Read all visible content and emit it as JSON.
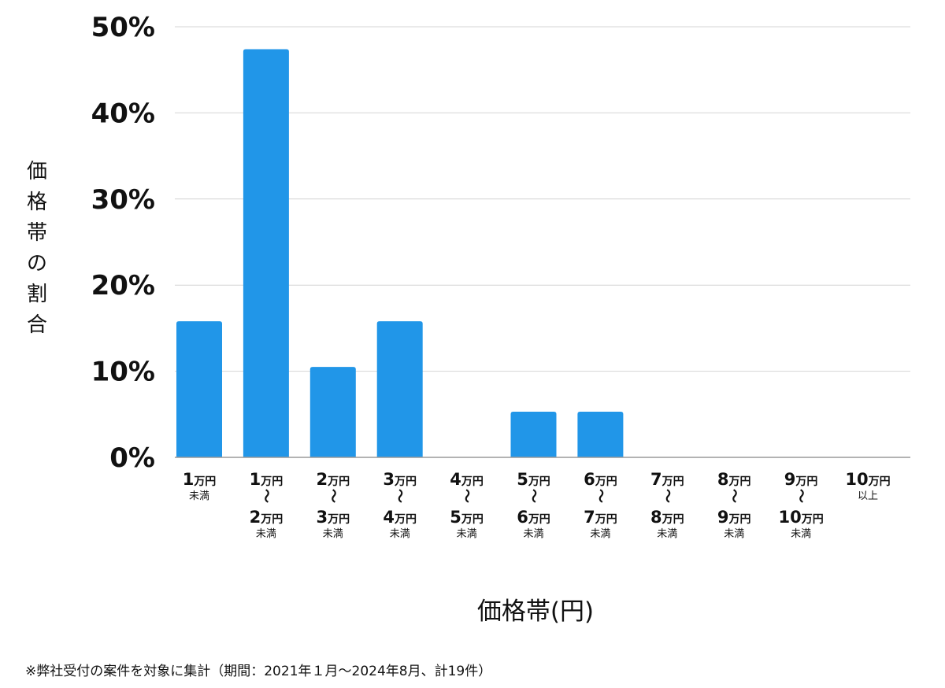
{
  "chart_data": {
    "type": "bar",
    "xlabel": "価格帯(円)",
    "ylabel": "価格帯の割合",
    "ylim": [
      0,
      50
    ],
    "yticks": [
      "0%",
      "10%",
      "20%",
      "30%",
      "40%",
      "50%"
    ],
    "grid": true,
    "categories": [
      "1万円未満",
      "1万円〜2万円未満",
      "2万円〜3万円未満",
      "3万円〜4万円未満",
      "4万円〜5万円未満",
      "5万円〜6万円未満",
      "6万円〜7万円未満",
      "7万円〜8万円未満",
      "8万円〜9万円未満",
      "9万円〜10万円未満",
      "10万円以上"
    ],
    "tick_labels": [
      {
        "lines": [
          {
            "num": "1",
            "unit": "万円"
          },
          {
            "small": "未満"
          }
        ]
      },
      {
        "lines": [
          {
            "num": "1",
            "unit": "万円"
          },
          {
            "wave": "〜"
          },
          {
            "num": "2",
            "unit": "万円"
          },
          {
            "small": "未満"
          }
        ]
      },
      {
        "lines": [
          {
            "num": "2",
            "unit": "万円"
          },
          {
            "wave": "〜"
          },
          {
            "num": "3",
            "unit": "万円"
          },
          {
            "small": "未満"
          }
        ]
      },
      {
        "lines": [
          {
            "num": "3",
            "unit": "万円"
          },
          {
            "wave": "〜"
          },
          {
            "num": "4",
            "unit": "万円"
          },
          {
            "small": "未満"
          }
        ]
      },
      {
        "lines": [
          {
            "num": "4",
            "unit": "万円"
          },
          {
            "wave": "〜"
          },
          {
            "num": "5",
            "unit": "万円"
          },
          {
            "small": "未満"
          }
        ]
      },
      {
        "lines": [
          {
            "num": "5",
            "unit": "万円"
          },
          {
            "wave": "〜"
          },
          {
            "num": "6",
            "unit": "万円"
          },
          {
            "small": "未満"
          }
        ]
      },
      {
        "lines": [
          {
            "num": "6",
            "unit": "万円"
          },
          {
            "wave": "〜"
          },
          {
            "num": "7",
            "unit": "万円"
          },
          {
            "small": "未満"
          }
        ]
      },
      {
        "lines": [
          {
            "num": "7",
            "unit": "万円"
          },
          {
            "wave": "〜"
          },
          {
            "num": "8",
            "unit": "万円"
          },
          {
            "small": "未満"
          }
        ]
      },
      {
        "lines": [
          {
            "num": "8",
            "unit": "万円"
          },
          {
            "wave": "〜"
          },
          {
            "num": "9",
            "unit": "万円"
          },
          {
            "small": "未満"
          }
        ]
      },
      {
        "lines": [
          {
            "num": "9",
            "unit": "万円"
          },
          {
            "wave": "〜"
          },
          {
            "num": "10",
            "unit": "万円"
          },
          {
            "small": "未満"
          }
        ]
      },
      {
        "lines": [
          {
            "num": "10",
            "unit": "万円"
          },
          {
            "small": "以上"
          }
        ]
      }
    ],
    "values": [
      15.8,
      47.4,
      10.5,
      15.8,
      0,
      5.3,
      5.3,
      0,
      0,
      0,
      0
    ],
    "bar_color": "#2196e8"
  },
  "footnote": "※弊社受付の案件を対象に集計（期間：2021年１月〜2024年8月、計19件）"
}
